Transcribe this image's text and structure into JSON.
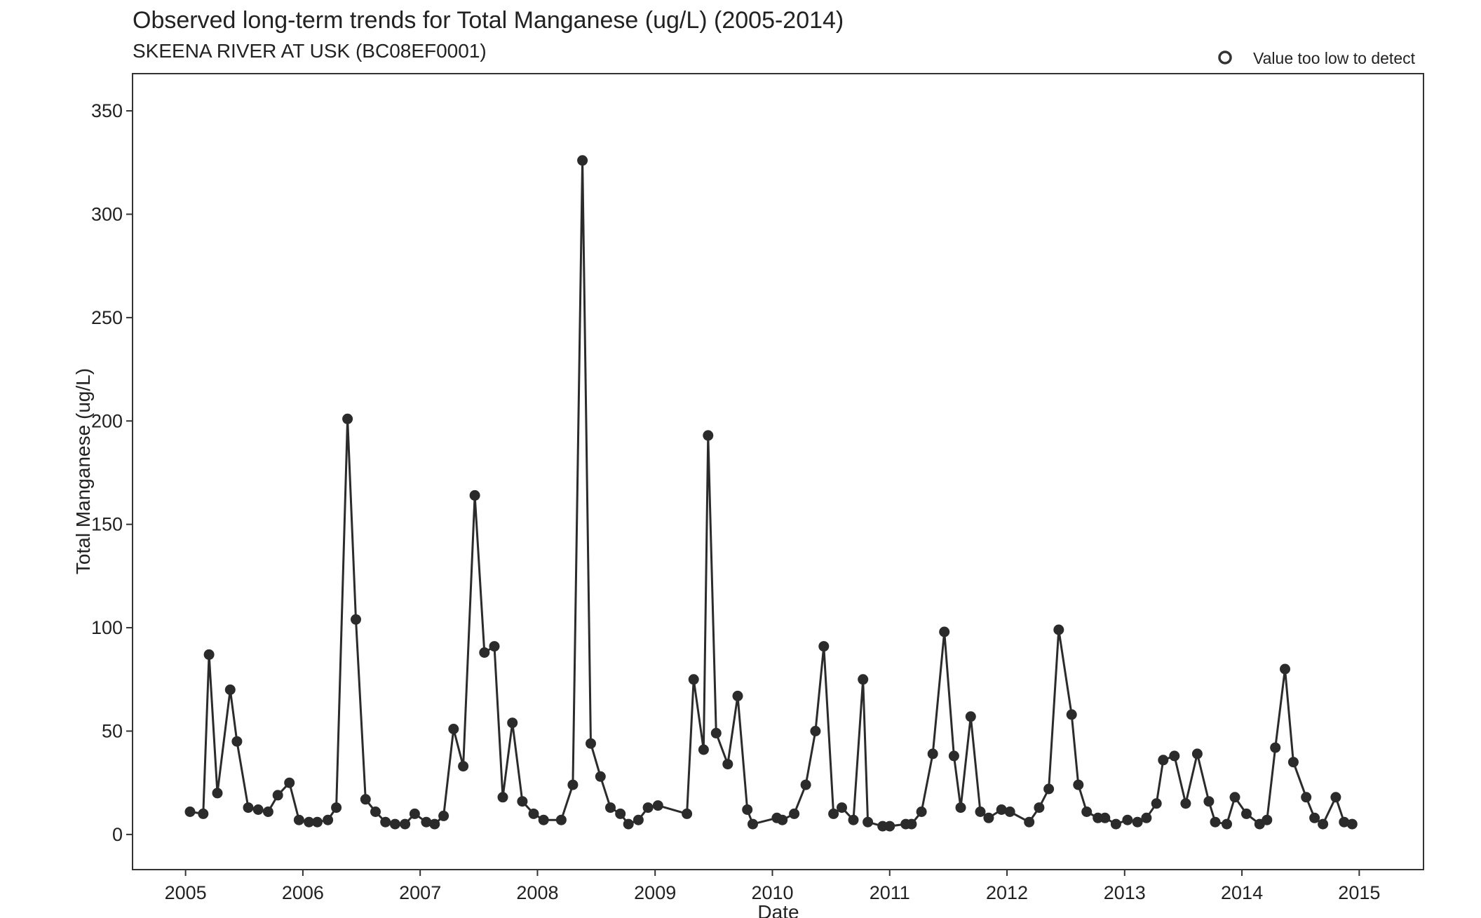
{
  "chart_data": {
    "type": "line",
    "title": "Observed long-term trends for Total Manganese (ug/L) (2005-2014)",
    "subtitle": "SKEENA RIVER AT USK (BC08EF0001)",
    "xlabel": "Date",
    "ylabel": "Total Manganese (ug/L)",
    "xlim": [
      "2004-07-20",
      "2015-07-20"
    ],
    "ylim": [
      -17,
      368
    ],
    "x_ticks": [
      "2005",
      "2006",
      "2007",
      "2008",
      "2009",
      "2010",
      "2011",
      "2012",
      "2013",
      "2014",
      "2015"
    ],
    "y_ticks": [
      "0",
      "50",
      "100",
      "150",
      "200",
      "250",
      "300",
      "350"
    ],
    "y_tick_values": [
      0,
      50,
      100,
      150,
      200,
      250,
      300,
      350
    ],
    "grid": false,
    "legend": {
      "position": "top-right",
      "entries": [
        "Value too low to detect"
      ]
    },
    "series": [
      {
        "points": [
          [
            "2005-01-15",
            11
          ],
          [
            "2005-02-25",
            10
          ],
          [
            "2005-03-15",
            87
          ],
          [
            "2005-04-10",
            20
          ],
          [
            "2005-05-20",
            70
          ],
          [
            "2005-06-10",
            45
          ],
          [
            "2005-07-15",
            13
          ],
          [
            "2005-08-15",
            12
          ],
          [
            "2005-09-15",
            11
          ],
          [
            "2005-10-15",
            19
          ],
          [
            "2005-11-20",
            25
          ],
          [
            "2005-12-20",
            7
          ],
          [
            "2006-01-20",
            6
          ],
          [
            "2006-02-15",
            6
          ],
          [
            "2006-03-20",
            7
          ],
          [
            "2006-04-15",
            13
          ],
          [
            "2006-05-20",
            201
          ],
          [
            "2006-06-15",
            104
          ],
          [
            "2006-07-15",
            17
          ],
          [
            "2006-08-15",
            11
          ],
          [
            "2006-09-15",
            6
          ],
          [
            "2006-10-15",
            5
          ],
          [
            "2006-11-15",
            5
          ],
          [
            "2006-12-15",
            10
          ],
          [
            "2007-01-20",
            6
          ],
          [
            "2007-02-15",
            5
          ],
          [
            "2007-03-15",
            9
          ],
          [
            "2007-04-15",
            51
          ],
          [
            "2007-05-15",
            33
          ],
          [
            "2007-06-20",
            164
          ],
          [
            "2007-07-20",
            88
          ],
          [
            "2007-08-20",
            91
          ],
          [
            "2007-09-15",
            18
          ],
          [
            "2007-10-15",
            54
          ],
          [
            "2007-11-15",
            16
          ],
          [
            "2007-12-20",
            10
          ],
          [
            "2008-01-20",
            7
          ],
          [
            "2008-03-15",
            7
          ],
          [
            "2008-04-20",
            24
          ],
          [
            "2008-05-20",
            326
          ],
          [
            "2008-06-15",
            44
          ],
          [
            "2008-07-15",
            28
          ],
          [
            "2008-08-15",
            13
          ],
          [
            "2008-09-15",
            10
          ],
          [
            "2008-10-10",
            5
          ],
          [
            "2008-11-10",
            7
          ],
          [
            "2008-12-10",
            13
          ],
          [
            "2009-01-10",
            14
          ],
          [
            "2009-04-10",
            10
          ],
          [
            "2009-05-01",
            75
          ],
          [
            "2009-06-01",
            41
          ],
          [
            "2009-06-15",
            193
          ],
          [
            "2009-07-10",
            49
          ],
          [
            "2009-08-15",
            34
          ],
          [
            "2009-09-15",
            67
          ],
          [
            "2009-10-15",
            12
          ],
          [
            "2009-11-01",
            5
          ],
          [
            "2010-01-15",
            8
          ],
          [
            "2010-02-01",
            7
          ],
          [
            "2010-03-10",
            10
          ],
          [
            "2010-04-15",
            24
          ],
          [
            "2010-05-15",
            50
          ],
          [
            "2010-06-10",
            91
          ],
          [
            "2010-07-10",
            10
          ],
          [
            "2010-08-05",
            13
          ],
          [
            "2010-09-10",
            7
          ],
          [
            "2010-10-10",
            75
          ],
          [
            "2010-10-25",
            6
          ],
          [
            "2010-12-10",
            4
          ],
          [
            "2011-01-01",
            4
          ],
          [
            "2011-02-20",
            5
          ],
          [
            "2011-03-10",
            5
          ],
          [
            "2011-04-10",
            11
          ],
          [
            "2011-05-15",
            39
          ],
          [
            "2011-06-20",
            98
          ],
          [
            "2011-07-20",
            38
          ],
          [
            "2011-08-10",
            13
          ],
          [
            "2011-09-10",
            57
          ],
          [
            "2011-10-10",
            11
          ],
          [
            "2011-11-05",
            8
          ],
          [
            "2011-12-15",
            12
          ],
          [
            "2012-01-10",
            11
          ],
          [
            "2012-03-10",
            6
          ],
          [
            "2012-04-10",
            13
          ],
          [
            "2012-05-10",
            22
          ],
          [
            "2012-06-10",
            99
          ],
          [
            "2012-07-20",
            58
          ],
          [
            "2012-08-10",
            24
          ],
          [
            "2012-09-05",
            11
          ],
          [
            "2012-10-10",
            8
          ],
          [
            "2012-11-01",
            8
          ],
          [
            "2012-12-05",
            5
          ],
          [
            "2013-01-10",
            7
          ],
          [
            "2013-02-10",
            6
          ],
          [
            "2013-03-10",
            8
          ],
          [
            "2013-04-10",
            15
          ],
          [
            "2013-05-01",
            36
          ],
          [
            "2013-06-05",
            38
          ],
          [
            "2013-07-10",
            15
          ],
          [
            "2013-08-15",
            39
          ],
          [
            "2013-09-20",
            16
          ],
          [
            "2013-10-10",
            6
          ],
          [
            "2013-11-15",
            5
          ],
          [
            "2013-12-10",
            18
          ],
          [
            "2014-01-15",
            10
          ],
          [
            "2014-02-25",
            5
          ],
          [
            "2014-03-20",
            7
          ],
          [
            "2014-04-15",
            42
          ],
          [
            "2014-05-15",
            80
          ],
          [
            "2014-06-10",
            35
          ],
          [
            "2014-07-20",
            18
          ],
          [
            "2014-08-15",
            8
          ],
          [
            "2014-09-10",
            5
          ],
          [
            "2014-10-20",
            18
          ],
          [
            "2014-11-15",
            6
          ],
          [
            "2014-12-10",
            5
          ]
        ]
      }
    ]
  }
}
